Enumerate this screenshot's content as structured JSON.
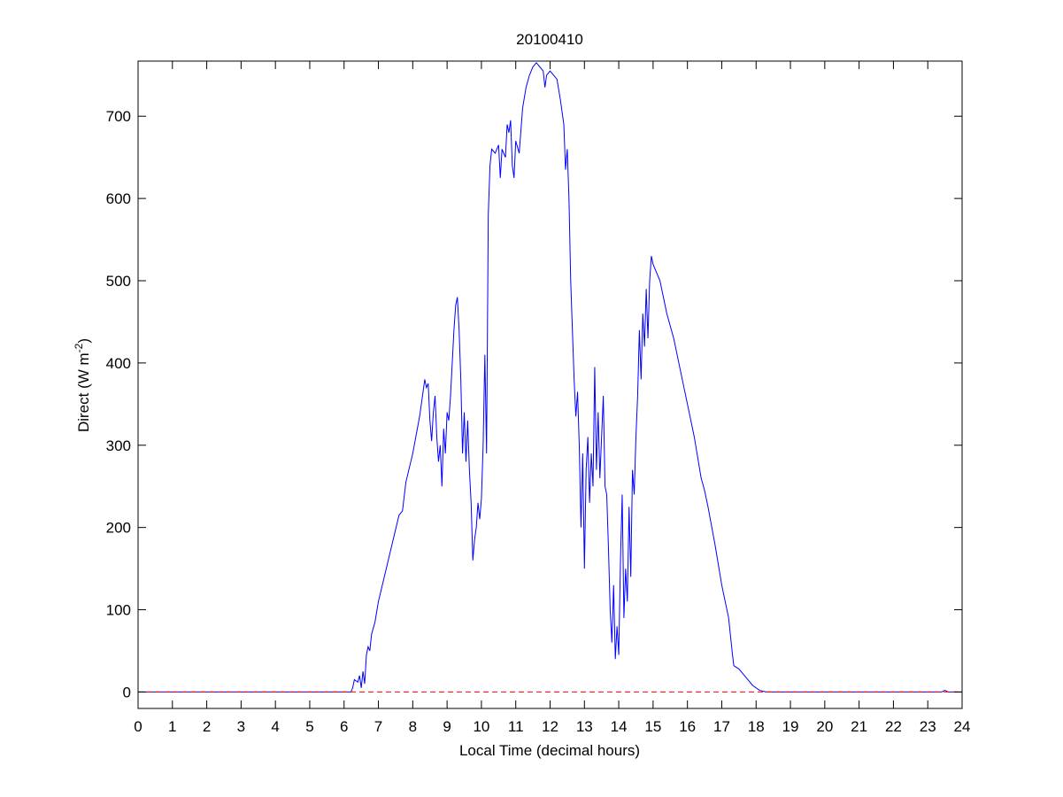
{
  "chart_data": {
    "type": "line",
    "title": "20100410",
    "x_label": "Local Time (decimal hours)",
    "y_label_parts": [
      "Direct (W m",
      "-2",
      ")"
    ],
    "xlim": [
      0,
      24
    ],
    "ylim": [
      -20,
      767
    ],
    "xticks": [
      0,
      1,
      2,
      3,
      4,
      5,
      6,
      7,
      8,
      9,
      10,
      11,
      12,
      13,
      14,
      15,
      16,
      17,
      18,
      19,
      20,
      21,
      22,
      23,
      24
    ],
    "yticks": [
      0,
      100,
      200,
      300,
      400,
      500,
      600,
      700
    ],
    "grid": false,
    "series": [
      {
        "color": "#0000ff",
        "line_style": "solid",
        "x": [
          0,
          6.2,
          6.25,
          6.3,
          6.4,
          6.45,
          6.5,
          6.55,
          6.6,
          6.65,
          6.7,
          6.75,
          6.8,
          6.9,
          7.0,
          7.2,
          7.4,
          7.6,
          7.7,
          7.8,
          8.0,
          8.2,
          8.3,
          8.35,
          8.4,
          8.45,
          8.5,
          8.55,
          8.6,
          8.65,
          8.7,
          8.75,
          8.8,
          8.85,
          8.9,
          8.95,
          9.0,
          9.05,
          9.1,
          9.15,
          9.2,
          9.25,
          9.3,
          9.35,
          9.4,
          9.45,
          9.5,
          9.55,
          9.6,
          9.65,
          9.7,
          9.75,
          9.8,
          9.85,
          9.9,
          9.95,
          10.0,
          10.05,
          10.1,
          10.15,
          10.2,
          10.25,
          10.3,
          10.4,
          10.5,
          10.55,
          10.6,
          10.7,
          10.75,
          10.8,
          10.85,
          10.9,
          10.95,
          11.0,
          11.1,
          11.2,
          11.3,
          11.4,
          11.5,
          11.6,
          11.7,
          11.8,
          11.85,
          11.9,
          12.0,
          12.1,
          12.2,
          12.3,
          12.4,
          12.45,
          12.5,
          12.55,
          12.6,
          12.7,
          12.75,
          12.8,
          12.85,
          12.9,
          12.95,
          13.0,
          13.05,
          13.1,
          13.15,
          13.2,
          13.25,
          13.3,
          13.35,
          13.4,
          13.45,
          13.5,
          13.55,
          13.6,
          13.65,
          13.7,
          13.75,
          13.8,
          13.85,
          13.9,
          13.95,
          14.0,
          14.05,
          14.1,
          14.15,
          14.2,
          14.25,
          14.3,
          14.35,
          14.4,
          14.45,
          14.5,
          14.55,
          14.6,
          14.65,
          14.7,
          14.75,
          14.8,
          14.85,
          14.9,
          14.95,
          15.0,
          15.2,
          15.4,
          15.6,
          15.8,
          16.0,
          16.2,
          16.4,
          16.5,
          16.6,
          16.8,
          17.0,
          17.2,
          17.3,
          17.35,
          17.5,
          17.7,
          17.9,
          18.1,
          18.3,
          23.4,
          23.5,
          23.6,
          24
        ],
        "values": [
          0,
          0,
          5,
          15,
          12,
          20,
          5,
          25,
          10,
          45,
          55,
          50,
          70,
          85,
          110,
          145,
          180,
          215,
          220,
          255,
          290,
          335,
          365,
          380,
          370,
          375,
          330,
          305,
          340,
          360,
          310,
          280,
          300,
          250,
          320,
          290,
          340,
          330,
          360,
          400,
          440,
          470,
          480,
          440,
          380,
          290,
          340,
          280,
          330,
          270,
          230,
          160,
          185,
          200,
          230,
          210,
          235,
          300,
          410,
          290,
          580,
          640,
          660,
          655,
          665,
          625,
          660,
          650,
          690,
          680,
          695,
          640,
          625,
          670,
          655,
          710,
          735,
          750,
          760,
          765,
          760,
          755,
          735,
          750,
          755,
          750,
          745,
          720,
          690,
          635,
          660,
          600,
          500,
          380,
          335,
          365,
          300,
          200,
          290,
          150,
          270,
          310,
          230,
          290,
          250,
          395,
          270,
          340,
          260,
          310,
          360,
          250,
          240,
          175,
          100,
          60,
          130,
          40,
          80,
          45,
          160,
          240,
          90,
          150,
          110,
          225,
          140,
          270,
          240,
          310,
          360,
          440,
          380,
          460,
          420,
          490,
          430,
          500,
          530,
          520,
          500,
          460,
          430,
          390,
          350,
          310,
          260,
          245,
          225,
          180,
          130,
          90,
          50,
          32,
          28,
          18,
          8,
          2,
          0,
          0,
          2,
          0,
          0
        ]
      },
      {
        "color": "#ff0000",
        "line_style": "dashed",
        "x": [
          0,
          24
        ],
        "values": [
          0,
          0
        ]
      }
    ]
  }
}
